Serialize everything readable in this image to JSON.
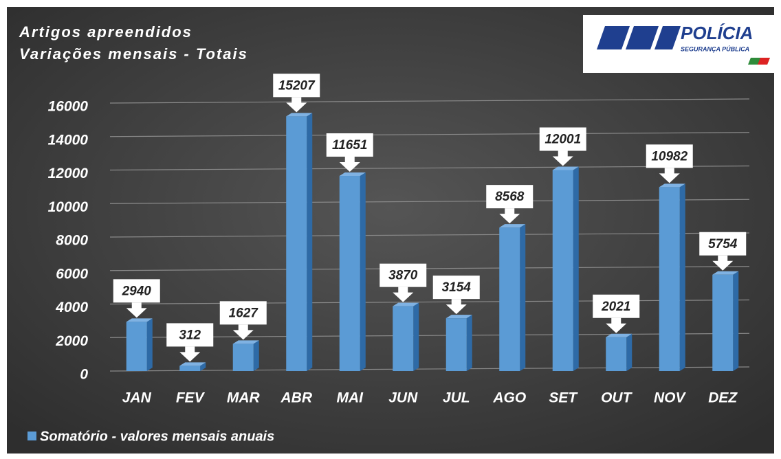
{
  "chart_data": {
    "type": "bar",
    "title": "Artigos apreendidos",
    "subtitle": "Variações mensais - Totais",
    "categories": [
      "JAN",
      "FEV",
      "MAR",
      "ABR",
      "MAI",
      "JUN",
      "JUL",
      "AGO",
      "SET",
      "OUT",
      "NOV",
      "DEZ"
    ],
    "series": [
      {
        "name": "Somatório - valores mensais anuais",
        "color": "#5b9bd5",
        "values": [
          2940,
          312,
          1627,
          15207,
          11651,
          3870,
          3154,
          8568,
          12001,
          2021,
          10982,
          5754
        ]
      }
    ],
    "ylim": [
      0,
      16000
    ],
    "yticks": [
      0,
      2000,
      4000,
      6000,
      8000,
      10000,
      12000,
      14000,
      16000
    ],
    "grid": true,
    "legend": "bottom-left"
  },
  "logo": {
    "title": "POLÍCIA",
    "subtitle": "SEGURANÇA PÚBLICA"
  }
}
